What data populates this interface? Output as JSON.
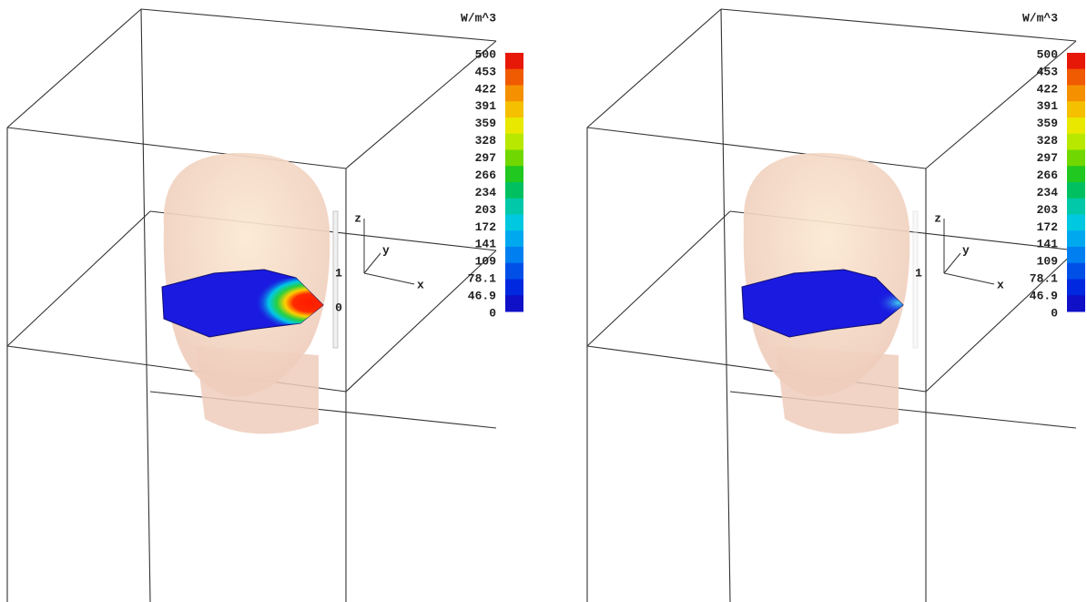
{
  "panels": [
    {
      "unit": "W/m^3",
      "colorbar_ticks": [
        500,
        453,
        422,
        391,
        359,
        328,
        297,
        266,
        234,
        203,
        172,
        141,
        109,
        78.1,
        46.9,
        0
      ],
      "axis_labels": {
        "z": "z",
        "y": "y",
        "x": "x"
      },
      "probe_labels": [
        "1",
        "0"
      ]
    },
    {
      "unit": "W/m^3",
      "colorbar_ticks": [
        500,
        453,
        422,
        391,
        359,
        328,
        297,
        266,
        234,
        203,
        172,
        141,
        109,
        78.1,
        46.9,
        0
      ],
      "axis_labels": {
        "z": "z",
        "y": "y",
        "x": "x"
      },
      "probe_labels": [
        "1"
      ]
    }
  ]
}
